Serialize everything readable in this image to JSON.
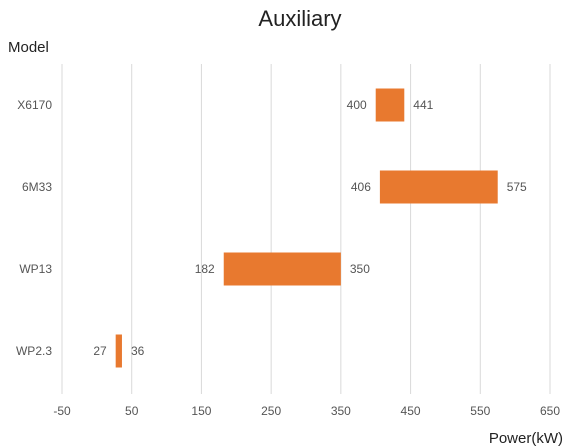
{
  "chart_data": {
    "type": "bar",
    "orientation": "horizontal",
    "variant": "floating-range",
    "title": "Auxiliary",
    "ylabel": "Model",
    "xlabel": "Power(kW)",
    "categories": [
      "X6170",
      "6M33",
      "WP13",
      "WP2.3"
    ],
    "series": [
      {
        "start": [
          400,
          406,
          182,
          27
        ],
        "end": [
          441,
          575,
          350,
          36
        ]
      }
    ],
    "xlim": [
      -50,
      650
    ],
    "xticks": [
      -50,
      50,
      150,
      250,
      350,
      450,
      550,
      650
    ],
    "xtick_labels": [
      "-50",
      "50",
      "150",
      "250",
      "350",
      "450",
      "550",
      "650"
    ],
    "grid": "vertical",
    "legend": "none",
    "colors": {
      "bar": "#E8792F"
    }
  }
}
